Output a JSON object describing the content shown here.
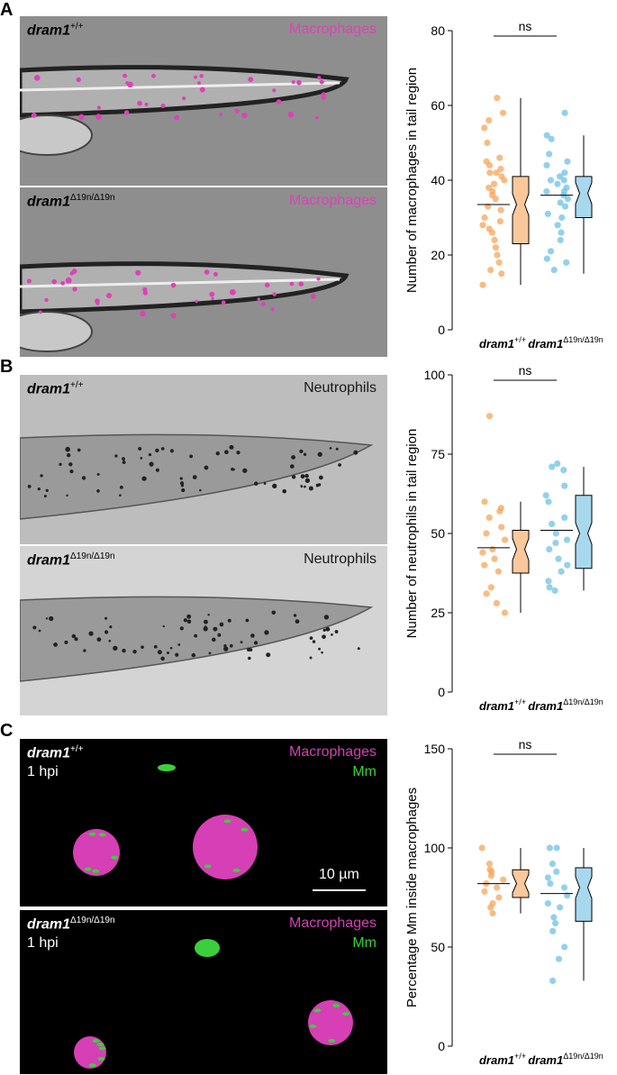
{
  "panels": [
    {
      "letter": "A",
      "images": [
        {
          "genotype": "dram1",
          "superscript": "+/+",
          "channel": "Macrophages",
          "channel_color": "#e040b8",
          "bg": "#8e8e8e",
          "style": "macrophage"
        },
        {
          "genotype": "dram1",
          "superscript": "Δ19n/Δ19n",
          "channel": "Macrophages",
          "channel_color": "#e040b8",
          "bg": "#8e8e8e",
          "style": "macrophage"
        }
      ]
    },
    {
      "letter": "B",
      "images": [
        {
          "genotype": "dram1",
          "superscript": "+/+",
          "channel": "Neutrophils",
          "channel_color": "#1a1a1a",
          "bg": "#bdbdbd",
          "style": "neutrophil"
        },
        {
          "genotype": "dram1",
          "superscript": "Δ19n/Δ19n",
          "channel": "Neutrophils",
          "channel_color": "#1a1a1a",
          "bg": "#d4d4d4",
          "style": "neutrophil"
        }
      ]
    },
    {
      "letter": "C",
      "images": [
        {
          "genotype": "dram1",
          "superscript": "+/+",
          "channel": "Macrophages",
          "channel2": "Mm",
          "timepoint": "1 hpi",
          "channel_color": "#d63fb5",
          "channel2_color": "#3ccf3c",
          "bg": "#000000",
          "style": "confocal",
          "scalebar": "10 µm"
        },
        {
          "genotype": "dram1",
          "superscript": "Δ19n/Δ19n",
          "channel": "Macrophages",
          "channel2": "Mm",
          "timepoint": "1 hpi",
          "channel_color": "#d63fb5",
          "channel2_color": "#3ccf3c",
          "bg": "#000000",
          "style": "confocal"
        }
      ]
    }
  ],
  "chart_data": [
    {
      "type": "scatter",
      "ylabel": "Number of macrophages in tail region",
      "ylim": [
        0,
        80
      ],
      "yticks": [
        0,
        20,
        40,
        60,
        80
      ],
      "categories": [
        "dram1",
        "dram1"
      ],
      "category_superscripts": [
        "+/+",
        "Δ19n/Δ19n"
      ],
      "significance": "ns",
      "series": [
        {
          "color": "#f5a55a",
          "box_fill": "#fbc89b",
          "points": [
            62,
            58,
            56,
            54,
            50,
            46,
            45,
            44,
            43,
            42,
            42,
            41,
            40,
            39,
            38,
            37,
            36,
            35,
            33,
            32,
            30,
            29,
            28,
            27,
            26,
            24,
            22,
            20,
            18,
            16,
            15,
            12
          ],
          "mean": 33.5,
          "box": {
            "min": 12,
            "q1": 23,
            "median": 33.5,
            "q3": 41,
            "max": 62
          }
        },
        {
          "color": "#6ec1e4",
          "box_fill": "#a8d8ee",
          "points": [
            58,
            52,
            51,
            47,
            45,
            44,
            42,
            41,
            40,
            40,
            39,
            38,
            37,
            37,
            36,
            35,
            34,
            33,
            31,
            30,
            28,
            26,
            24,
            21,
            19,
            18,
            16
          ],
          "mean": 36,
          "box": {
            "min": 15,
            "q1": 30,
            "median": 36.5,
            "q3": 41,
            "max": 52
          }
        }
      ]
    },
    {
      "type": "scatter",
      "ylabel": "Number of neutrophils in tail region",
      "ylim": [
        0,
        100
      ],
      "yticks": [
        0,
        25,
        50,
        75,
        100
      ],
      "categories": [
        "dram1",
        "dram1"
      ],
      "category_superscripts": [
        "+/+",
        "Δ19n/Δ19n"
      ],
      "significance": "ns",
      "series": [
        {
          "color": "#f5a55a",
          "box_fill": "#fbc89b",
          "points": [
            87,
            60,
            58,
            57,
            55,
            52,
            50,
            48,
            45,
            44,
            42,
            40,
            38,
            33,
            31,
            28,
            25
          ],
          "mean": 45.5,
          "box": {
            "min": 25,
            "q1": 37.5,
            "median": 45,
            "q3": 51,
            "max": 60
          }
        },
        {
          "color": "#6ec1e4",
          "box_fill": "#a8d8ee",
          "points": [
            72,
            71,
            70,
            65,
            62,
            60,
            55,
            53,
            50,
            48,
            47,
            45,
            42,
            40,
            38,
            35,
            33,
            32
          ],
          "mean": 51,
          "box": {
            "min": 32,
            "q1": 39,
            "median": 50,
            "q3": 62,
            "max": 71
          }
        }
      ]
    },
    {
      "type": "scatter",
      "ylabel": "Percentage Mm inside macrophages",
      "ylim": [
        0,
        150
      ],
      "yticks": [
        0,
        50,
        100,
        150
      ],
      "categories": [
        "dram1",
        "dram1"
      ],
      "category_superscripts": [
        "+/+",
        "Δ19n/Δ19n"
      ],
      "significance": "ns",
      "series": [
        {
          "color": "#f5a55a",
          "box_fill": "#fbc89b",
          "points": [
            100,
            92,
            89,
            88,
            86,
            84,
            82,
            80,
            78,
            75,
            72,
            70,
            67
          ],
          "mean": 82,
          "box": {
            "min": 67,
            "q1": 75,
            "median": 82,
            "q3": 89,
            "max": 100
          }
        },
        {
          "color": "#6ec1e4",
          "box_fill": "#a8d8ee",
          "points": [
            100,
            100,
            92,
            88,
            85,
            82,
            80,
            76,
            72,
            70,
            65,
            62,
            58,
            50,
            44,
            33
          ],
          "mean": 77,
          "box": {
            "min": 33,
            "q1": 63,
            "median": 80,
            "q3": 90,
            "max": 100
          }
        }
      ]
    }
  ]
}
